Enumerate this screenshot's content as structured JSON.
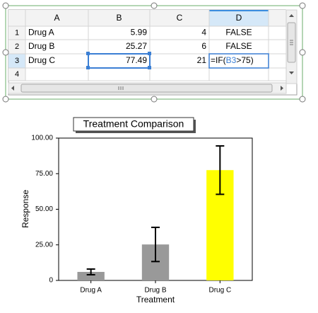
{
  "spreadsheet": {
    "columns": [
      "A",
      "B",
      "C",
      "D"
    ],
    "rows": [
      "1",
      "2",
      "3",
      "4"
    ],
    "cells": [
      [
        "Drug A",
        5.99,
        4,
        "FALSE"
      ],
      [
        "Drug B",
        25.27,
        6,
        "FALSE"
      ],
      [
        "Drug C",
        77.49,
        21
      ]
    ],
    "formula": [
      "=IF(",
      "B3",
      ">75)"
    ]
  },
  "chart_data": {
    "type": "bar",
    "title": "Treatment Comparison",
    "x_label": "Treatment",
    "y_label": "Response",
    "categories": [
      "Drug A",
      "Drug B",
      "Drug C"
    ],
    "values": [
      5.99,
      25.27,
      77.49
    ],
    "errors": [
      2,
      12,
      17
    ],
    "colors": [
      "#999999",
      "#999999",
      "#ffff00"
    ],
    "ylim": [
      0,
      100
    ],
    "yticks": [
      0,
      {
        "value": 25,
        "label": "25.00"
      },
      {
        "value": 50,
        "label": "50.00"
      },
      {
        "value": 75,
        "label": "75.00"
      },
      {
        "value": 100,
        "label": "100.00"
      }
    ]
  }
}
